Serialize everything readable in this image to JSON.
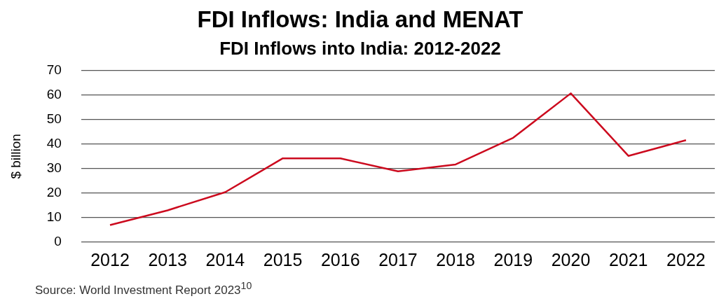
{
  "chart_data": {
    "type": "line",
    "title": "FDI Inflows: India and MENAT",
    "subtitle": "FDI Inflows into India: 2012-2022",
    "ylabel": "$ billion",
    "categories": [
      "2012",
      "2013",
      "2014",
      "2015",
      "2016",
      "2017",
      "2018",
      "2019",
      "2020",
      "2021",
      "2022"
    ],
    "series": [
      {
        "color": "#cc0a1e",
        "values": [
          7,
          13,
          20.4,
          34.2,
          34.2,
          28.9,
          31.7,
          42.6,
          60.7,
          35.2,
          41.6
        ]
      }
    ],
    "ylim": [
      0,
      70
    ],
    "yticks": [
      0,
      10,
      20,
      30,
      40,
      50,
      60,
      70
    ],
    "grid": "y",
    "legend": false,
    "marker": "none",
    "line_style": "solid",
    "annotations": [
      "Source: World Investment Report 2023$^{10}$"
    ]
  }
}
